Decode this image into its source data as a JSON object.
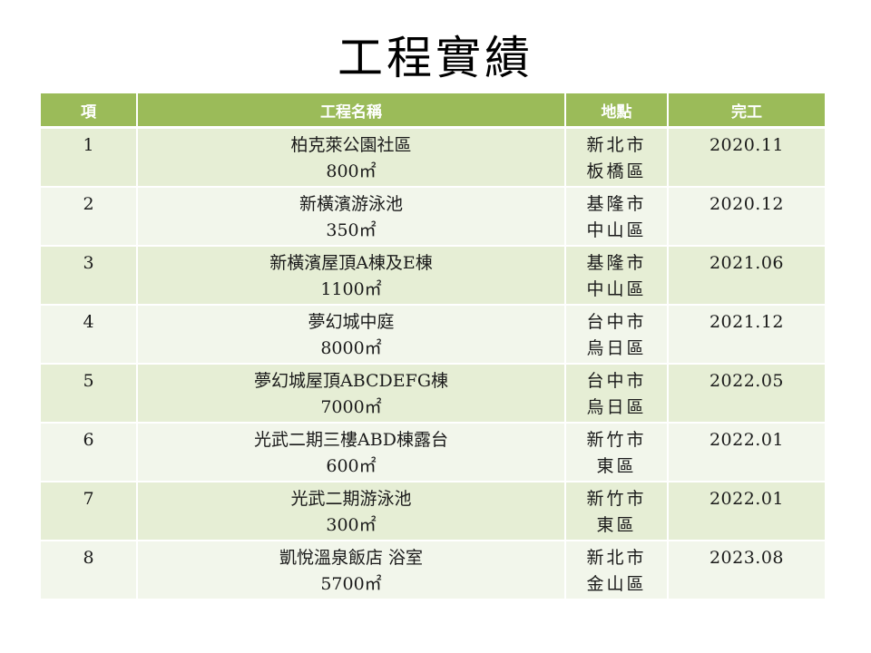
{
  "title": "工程實績",
  "headers": {
    "index": "項",
    "name": "工程名稱",
    "location": "地點",
    "completed": "完工"
  },
  "rows": [
    {
      "index": "1",
      "name": "柏克萊公園社區",
      "area": "800㎡",
      "city": "新北市",
      "district": "板橋區",
      "completed": "2020.11"
    },
    {
      "index": "2",
      "name": "新橫濱游泳池",
      "area": "350㎡",
      "city": "基隆市",
      "district": "中山區",
      "completed": "2020.12"
    },
    {
      "index": "3",
      "name": "新橫濱屋頂A棟及E棟",
      "area": "1100㎡",
      "city": "基隆市",
      "district": "中山區",
      "completed": "2021.06"
    },
    {
      "index": "4",
      "name": "夢幻城中庭",
      "area": "8000㎡",
      "city": "台中市",
      "district": "烏日區",
      "completed": "2021.12"
    },
    {
      "index": "5",
      "name": "夢幻城屋頂ABCDEFG棟",
      "area": "7000㎡",
      "city": "台中市",
      "district": "烏日區",
      "completed": "2022.05"
    },
    {
      "index": "6",
      "name": "光武二期三樓ABD棟露台",
      "area": "600㎡",
      "city": "新竹市",
      "district": "東區",
      "completed": "2022.01"
    },
    {
      "index": "7",
      "name": "光武二期游泳池",
      "area": "300㎡",
      "city": "新竹市",
      "district": "東區",
      "completed": "2022.01"
    },
    {
      "index": "8",
      "name": "凱悅溫泉飯店 浴室",
      "area": "5700㎡",
      "city": "新北市",
      "district": "金山區",
      "completed": "2023.08"
    }
  ],
  "colors": {
    "header_bg": "#9bbb59",
    "row_odd_bg": "#e6eed5",
    "row_even_bg": "#f2f6eb"
  }
}
